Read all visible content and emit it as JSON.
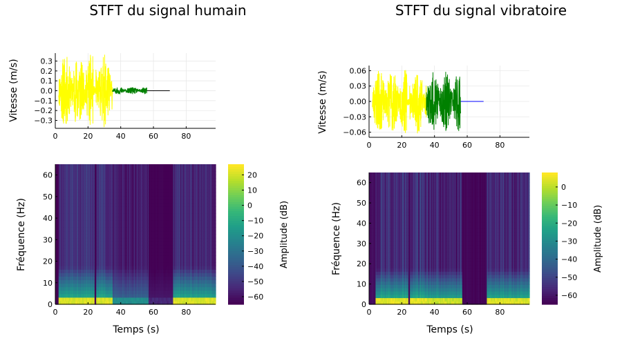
{
  "chart_data": [
    {
      "type": "line",
      "title": "STFT du signal humain",
      "xlabel": "",
      "ylabel": "Vitesse (m/s)",
      "xlim": [
        0,
        98
      ],
      "ylim": [
        -0.38,
        0.38
      ],
      "xticks": [
        0,
        20,
        40,
        60,
        80
      ],
      "yticks": [
        -0.3,
        -0.2,
        -0.1,
        0.0,
        0.1,
        0.2,
        0.3
      ],
      "ytick_labels": [
        "−0.3",
        "−0.2",
        "−0.1",
        "0.0",
        "0.1",
        "0.2",
        "0.3"
      ],
      "grid": true,
      "series": [
        {
          "color": "#ffff00",
          "x": [
            2,
            35
          ],
          "amplitude": 0.37
        },
        {
          "color": "#008000",
          "x": [
            35,
            56
          ],
          "amplitude": 0.035
        },
        {
          "color": "#000000",
          "x": [
            56,
            70
          ],
          "amplitude": 0.0
        }
      ]
    },
    {
      "type": "line",
      "title": "STFT du signal vibratoire",
      "xlabel": "",
      "ylabel": "Vitesse (m/s)",
      "xlim": [
        0,
        98
      ],
      "ylim": [
        -0.07,
        0.07
      ],
      "xticks": [
        0,
        20,
        40,
        60,
        80
      ],
      "yticks": [
        -0.06,
        -0.03,
        0.0,
        0.03,
        0.06
      ],
      "ytick_labels": [
        "−0.06",
        "−0.03",
        "0.00",
        "0.03",
        "0.06"
      ],
      "grid": true,
      "series": [
        {
          "color": "#ffff00",
          "x": [
            2,
            35
          ],
          "amplitude": 0.063
        },
        {
          "color": "#008000",
          "x": [
            35,
            56
          ],
          "amplitude": 0.058
        },
        {
          "color": "#0000ff",
          "x": [
            56,
            70
          ],
          "amplitude": 0.0
        }
      ]
    },
    {
      "type": "heatmap",
      "title": "",
      "xlabel": "Temps (s)",
      "ylabel": "Fréquence (Hz)",
      "colorbar_label": "Amplitude (dB)",
      "xlim": [
        0,
        98
      ],
      "ylim": [
        0,
        65
      ],
      "clim": [
        -65,
        27
      ],
      "xticks": [
        0,
        20,
        40,
        60,
        80
      ],
      "yticks": [
        0,
        10,
        20,
        30,
        40,
        50,
        60
      ],
      "cticks": [
        -60,
        -50,
        -40,
        -30,
        -20,
        -10,
        0,
        10,
        20
      ],
      "ctick_labels": [
        "−60",
        "−50",
        "−40",
        "−30",
        "−20",
        "−10",
        "0",
        "10",
        "20"
      ],
      "colormap": "viridis",
      "regions": [
        {
          "t": [
            0,
            2
          ],
          "level": -65
        },
        {
          "t": [
            2,
            24
          ],
          "level": -52,
          "low_band": 22
        },
        {
          "t": [
            24,
            25
          ],
          "level": -65
        },
        {
          "t": [
            25,
            35
          ],
          "level": -52,
          "low_band": 22
        },
        {
          "t": [
            35,
            57
          ],
          "level": -58,
          "low_band": -20
        },
        {
          "t": [
            57,
            72
          ],
          "level": -65,
          "low_band": -55
        },
        {
          "t": [
            72,
            98
          ],
          "level": -55,
          "low_band": 22
        }
      ]
    },
    {
      "type": "heatmap",
      "title": "",
      "xlabel": "Temps (s)",
      "ylabel": "Fréquence (Hz)",
      "colorbar_label": "Amplitude (dB)",
      "xlim": [
        0,
        98
      ],
      "ylim": [
        0,
        65
      ],
      "clim": [
        -65,
        8
      ],
      "xticks": [
        0,
        20,
        40,
        60,
        80
      ],
      "yticks": [
        0,
        10,
        20,
        30,
        40,
        50,
        60
      ],
      "cticks": [
        -60,
        -50,
        -40,
        -30,
        -20,
        -10,
        0
      ],
      "ctick_labels": [
        "−60",
        "−50",
        "−40",
        "−30",
        "−20",
        "−10",
        "0"
      ],
      "colormap": "viridis",
      "regions": [
        {
          "t": [
            0,
            4
          ],
          "level": -62
        },
        {
          "t": [
            4,
            24
          ],
          "level": -55,
          "low_band": 5
        },
        {
          "t": [
            24,
            25
          ],
          "level": -64
        },
        {
          "t": [
            25,
            35
          ],
          "level": -55,
          "low_band": 5
        },
        {
          "t": [
            35,
            57
          ],
          "level": -57,
          "low_band": 2
        },
        {
          "t": [
            57,
            72
          ],
          "level": -64
        },
        {
          "t": [
            72,
            98
          ],
          "level": -56,
          "low_band": 4
        }
      ]
    }
  ]
}
